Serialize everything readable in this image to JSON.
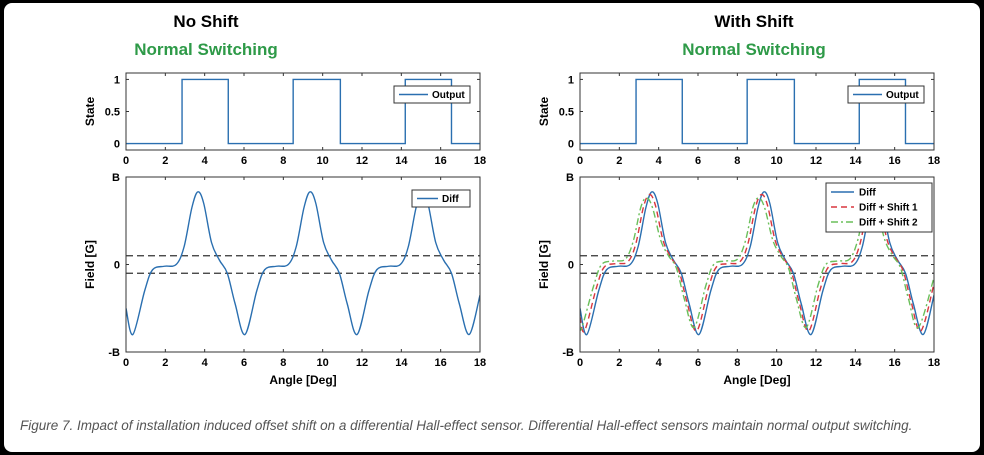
{
  "caption": "Figure 7. Impact of installation induced offset shift on a differential Hall-effect sensor. Differential Hall-effect sensors maintain normal output switching.",
  "colors": {
    "diff": "#2a6fb0",
    "shift1": "#d9363e",
    "shift2": "#6abf5a",
    "threshold": "#333333",
    "subtitle": "#2e9a48"
  },
  "chart_data": [
    {
      "panel": "left",
      "title": "No Shift",
      "subtitle": "Normal Switching",
      "plots": [
        {
          "type": "line",
          "ylabel": "State",
          "xlim": [
            0,
            18
          ],
          "ylim": [
            -0.1,
            1.1
          ],
          "xticks": [
            "0",
            "2",
            "4",
            "6",
            "8",
            "10",
            "12",
            "14",
            "16",
            "18"
          ],
          "yticks": [
            "0",
            "0.5",
            "1"
          ],
          "ytick_values": [
            0,
            0.5,
            1
          ],
          "legend": "top-right",
          "series": [
            {
              "name": "Output",
              "step": true,
              "x": [
                0,
                2.85,
                5.2,
                8.5,
                10.9,
                14.2,
                16.55,
                18
              ],
              "y": [
                0,
                1,
                0,
                1,
                0,
                1,
                0,
                0
              ]
            }
          ]
        },
        {
          "type": "line",
          "ylabel": "Field [G]",
          "xlabel": "Angle [Deg]",
          "xlim": [
            0,
            18
          ],
          "ylim": [
            -1,
            1
          ],
          "xticks": [
            "0",
            "2",
            "4",
            "6",
            "8",
            "10",
            "12",
            "14",
            "16",
            "18"
          ],
          "yticks": [
            "-B",
            "0",
            "B"
          ],
          "ytick_values": [
            -1,
            0,
            1
          ],
          "thresholds": [
            0.1,
            -0.1
          ],
          "legend": "top-right",
          "series": [
            {
              "name": "Diff",
              "x": [
                0,
                0.35,
                0.95,
                1.35,
                1.95,
                2.55,
                2.95,
                3.35,
                3.65,
                3.95,
                4.35,
                4.75,
                5.15,
                5.55,
                6.05,
                6.65,
                7.05,
                7.65,
                8.25,
                8.65,
                9.05,
                9.35,
                9.65,
                10.05,
                10.45,
                10.85,
                11.25,
                11.75,
                12.35,
                12.75,
                13.35,
                13.95,
                14.35,
                14.75,
                15.05,
                15.35,
                15.75,
                16.15,
                16.55,
                16.95,
                17.45,
                18
              ],
              "y": [
                -0.5,
                -0.8,
                -0.3,
                -0.06,
                -0.02,
                0,
                0.2,
                0.65,
                0.83,
                0.7,
                0.25,
                0.05,
                -0.1,
                -0.45,
                -0.8,
                -0.3,
                -0.06,
                -0.02,
                0,
                0.2,
                0.65,
                0.83,
                0.7,
                0.25,
                0.05,
                -0.1,
                -0.45,
                -0.8,
                -0.3,
                -0.06,
                -0.02,
                0,
                0.2,
                0.65,
                0.83,
                0.7,
                0.25,
                0.05,
                -0.1,
                -0.45,
                -0.8,
                -0.35
              ]
            }
          ]
        }
      ]
    },
    {
      "panel": "right",
      "title": "With Shift",
      "subtitle": "Normal Switching",
      "plots": [
        {
          "type": "line",
          "ylabel": "State",
          "xlim": [
            0,
            18
          ],
          "ylim": [
            -0.1,
            1.1
          ],
          "xticks": [
            "0",
            "2",
            "4",
            "6",
            "8",
            "10",
            "12",
            "14",
            "16",
            "18"
          ],
          "yticks": [
            "0",
            "0.5",
            "1"
          ],
          "ytick_values": [
            0,
            0.5,
            1
          ],
          "legend": "top-right",
          "series": [
            {
              "name": "Output",
              "step": true,
              "x": [
                0,
                2.85,
                5.2,
                8.5,
                10.9,
                14.2,
                16.55,
                18
              ],
              "y": [
                0,
                1,
                0,
                1,
                0,
                1,
                0,
                0
              ]
            }
          ]
        },
        {
          "type": "line",
          "ylabel": "Field [G]",
          "xlabel": "Angle [Deg]",
          "xlim": [
            0,
            18
          ],
          "ylim": [
            -1,
            1
          ],
          "xticks": [
            "0",
            "2",
            "4",
            "6",
            "8",
            "10",
            "12",
            "14",
            "16",
            "18"
          ],
          "yticks": [
            "-B",
            "0",
            "B"
          ],
          "ytick_values": [
            -1,
            0,
            1
          ],
          "thresholds": [
            0.1,
            -0.1
          ],
          "legend": "top-right",
          "series": [
            {
              "name": "Diff",
              "x": [
                0,
                0.35,
                0.95,
                1.35,
                1.95,
                2.55,
                2.95,
                3.35,
                3.65,
                3.95,
                4.35,
                4.75,
                5.15,
                5.55,
                6.05,
                6.65,
                7.05,
                7.65,
                8.25,
                8.65,
                9.05,
                9.35,
                9.65,
                10.05,
                10.45,
                10.85,
                11.25,
                11.75,
                12.35,
                12.75,
                13.35,
                13.95,
                14.35,
                14.75,
                15.05,
                15.35,
                15.75,
                16.15,
                16.55,
                16.95,
                17.45,
                18
              ],
              "y": [
                -0.5,
                -0.8,
                -0.3,
                -0.06,
                -0.02,
                0,
                0.2,
                0.65,
                0.83,
                0.7,
                0.25,
                0.05,
                -0.1,
                -0.45,
                -0.8,
                -0.3,
                -0.06,
                -0.02,
                0,
                0.2,
                0.65,
                0.83,
                0.7,
                0.25,
                0.05,
                -0.1,
                -0.45,
                -0.8,
                -0.3,
                -0.06,
                -0.02,
                0,
                0.2,
                0.65,
                0.83,
                0.7,
                0.25,
                0.05,
                -0.1,
                -0.45,
                -0.8,
                -0.35
              ]
            },
            {
              "name": "Diff + Shift 1",
              "x": [
                0,
                0.23,
                0.83,
                1.23,
                1.83,
                2.43,
                2.83,
                3.23,
                3.53,
                3.83,
                4.23,
                4.63,
                5.03,
                5.43,
                5.93,
                6.53,
                6.93,
                7.53,
                8.13,
                8.53,
                8.93,
                9.23,
                9.53,
                9.93,
                10.33,
                10.73,
                11.13,
                11.63,
                12.23,
                12.63,
                13.23,
                13.83,
                14.23,
                14.63,
                14.93,
                15.23,
                15.63,
                16.03,
                16.43,
                16.83,
                17.33,
                18
              ],
              "y": [
                -0.6,
                -0.76,
                -0.27,
                -0.03,
                0.01,
                0.03,
                0.23,
                0.66,
                0.8,
                0.68,
                0.27,
                0.08,
                -0.07,
                -0.42,
                -0.76,
                -0.27,
                -0.03,
                0.01,
                0.03,
                0.23,
                0.66,
                0.8,
                0.68,
                0.27,
                0.08,
                -0.07,
                -0.42,
                -0.76,
                -0.27,
                -0.03,
                0.01,
                0.03,
                0.23,
                0.66,
                0.8,
                0.68,
                0.27,
                0.08,
                -0.07,
                -0.42,
                -0.76,
                -0.22
              ]
            },
            {
              "name": "Diff + Shift 2",
              "x": [
                0,
                0.1,
                0.7,
                1.1,
                1.7,
                2.3,
                2.7,
                3.1,
                3.4,
                3.7,
                4.1,
                4.5,
                4.9,
                5.3,
                5.8,
                6.4,
                6.8,
                7.4,
                8.0,
                8.4,
                8.8,
                9.1,
                9.4,
                9.8,
                10.2,
                10.6,
                11.0,
                11.5,
                12.1,
                12.5,
                13.1,
                13.7,
                14.1,
                14.5,
                14.8,
                15.1,
                15.5,
                15.9,
                16.3,
                16.7,
                17.2,
                18
              ],
              "y": [
                -0.7,
                -0.72,
                -0.24,
                0,
                0.04,
                0.06,
                0.26,
                0.66,
                0.76,
                0.64,
                0.28,
                0.1,
                -0.04,
                -0.39,
                -0.72,
                -0.24,
                0,
                0.04,
                0.06,
                0.26,
                0.66,
                0.76,
                0.64,
                0.28,
                0.1,
                -0.04,
                -0.39,
                -0.72,
                -0.24,
                0,
                0.04,
                0.06,
                0.26,
                0.66,
                0.76,
                0.64,
                0.28,
                0.1,
                -0.04,
                -0.39,
                -0.72,
                -0.15
              ]
            }
          ]
        }
      ]
    }
  ]
}
